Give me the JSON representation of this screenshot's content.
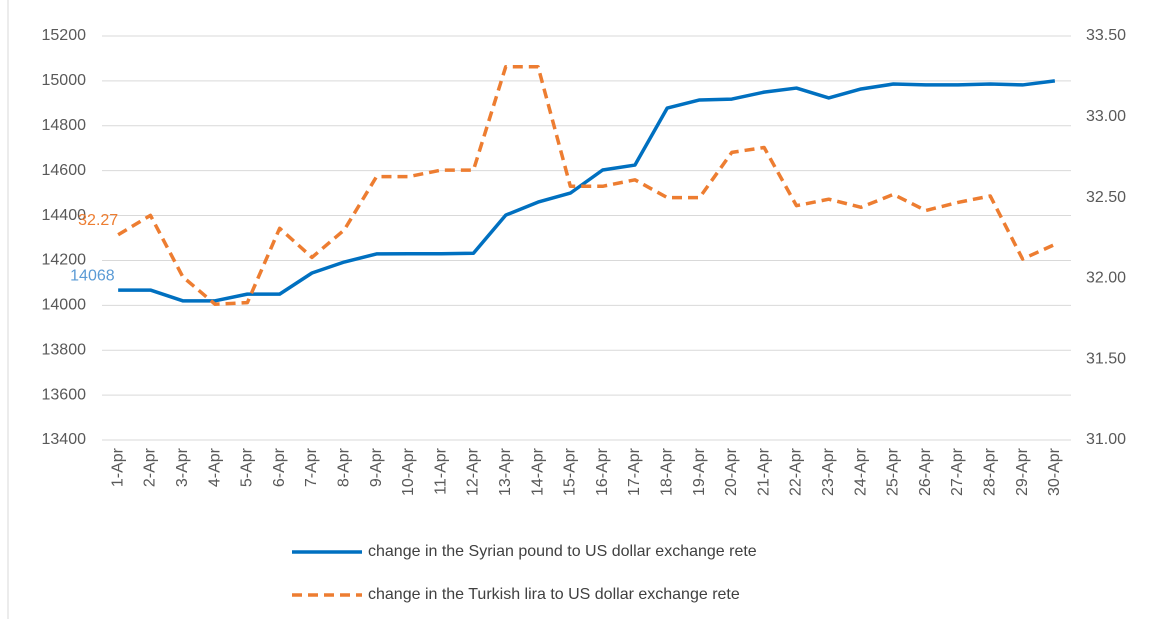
{
  "chart_data": {
    "type": "line",
    "categories": [
      "1-Apr",
      "2-Apr",
      "3-Apr",
      "4-Apr",
      "5-Apr",
      "6-Apr",
      "7-Apr",
      "8-Apr",
      "9-Apr",
      "10-Apr",
      "11-Apr",
      "12-Apr",
      "13-Apr",
      "14-Apr",
      "15-Apr",
      "16-Apr",
      "17-Apr",
      "18-Apr",
      "19-Apr",
      "20-Apr",
      "21-Apr",
      "22-Apr",
      "23-Apr",
      "24-Apr",
      "25-Apr",
      "26-Apr",
      "27-Apr",
      "28-Apr",
      "29-Apr",
      "30-Apr"
    ],
    "series": [
      {
        "name": "change in the Syrian pound to US dollar exchange rete",
        "color": "#0070c0",
        "dash": false,
        "label_color": "#5b9bd5",
        "values": [
          14068,
          14068,
          14020,
          14020,
          14050,
          14050,
          14144,
          14193,
          14229,
          14230,
          14230,
          14232,
          14402,
          14460,
          14500,
          14603,
          14625,
          14879,
          14915,
          14919,
          14950,
          14968,
          14924,
          14964,
          14986,
          14982,
          14982,
          14986,
          14982,
          15000
        ]
      },
      {
        "name": "change in the Turkish lira to US dollar exchange rete",
        "color": "#ed7d31",
        "dash": true,
        "axis": "y2",
        "label_color": "#ed7d31",
        "values": [
          32.27,
          32.39,
          32.01,
          31.84,
          31.85,
          32.31,
          32.13,
          32.3,
          32.63,
          32.63,
          32.67,
          32.67,
          33.31,
          33.31,
          32.57,
          32.57,
          32.61,
          32.5,
          32.5,
          32.78,
          32.81,
          32.45,
          32.49,
          32.44,
          32.52,
          32.42,
          32.47,
          32.51,
          32.12,
          32.21
        ]
      }
    ],
    "ylim": [
      13400,
      15200
    ],
    "yticks": [
      13400,
      13600,
      13800,
      14000,
      14200,
      14400,
      14600,
      14800,
      15000,
      15200
    ],
    "y2lim": [
      31,
      33.5
    ],
    "y2ticks": [
      {
        "value": 31,
        "label": "31.00"
      },
      {
        "value": 31.5,
        "label": "31.50"
      },
      {
        "value": 32,
        "label": "32.00"
      },
      {
        "value": 32.5,
        "label": "32.50"
      },
      {
        "value": 33,
        "label": "33.00"
      },
      {
        "value": 33.5,
        "label": "33.50"
      }
    ],
    "grid": true,
    "legend": "bottom"
  }
}
